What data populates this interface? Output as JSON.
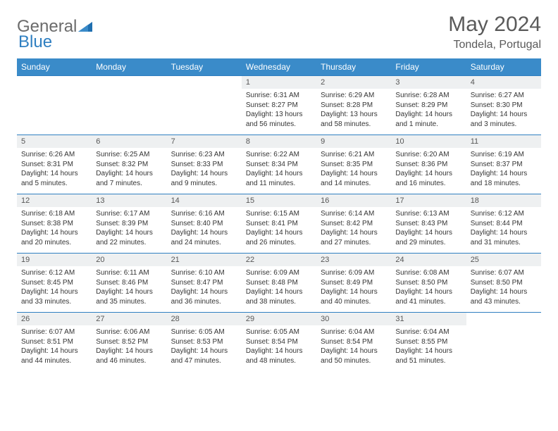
{
  "brand": {
    "general": "General",
    "blue": "Blue"
  },
  "title": "May 2024",
  "subtitle": "Tondela, Portugal",
  "colors": {
    "header_bg": "#3a8bc9",
    "header_text": "#ffffff",
    "day_bg": "#eef0f1",
    "row_border": "#2f7fc1",
    "text": "#353535",
    "logo_gray": "#6b6b6b",
    "logo_blue": "#2f7fc1"
  },
  "weekdays": [
    "Sunday",
    "Monday",
    "Tuesday",
    "Wednesday",
    "Thursday",
    "Friday",
    "Saturday"
  ],
  "weeks": [
    [
      null,
      null,
      null,
      {
        "n": "1",
        "sr": "6:31 AM",
        "ss": "8:27 PM",
        "dl": "13 hours and 56 minutes."
      },
      {
        "n": "2",
        "sr": "6:29 AM",
        "ss": "8:28 PM",
        "dl": "13 hours and 58 minutes."
      },
      {
        "n": "3",
        "sr": "6:28 AM",
        "ss": "8:29 PM",
        "dl": "14 hours and 1 minute."
      },
      {
        "n": "4",
        "sr": "6:27 AM",
        "ss": "8:30 PM",
        "dl": "14 hours and 3 minutes."
      }
    ],
    [
      {
        "n": "5",
        "sr": "6:26 AM",
        "ss": "8:31 PM",
        "dl": "14 hours and 5 minutes."
      },
      {
        "n": "6",
        "sr": "6:25 AM",
        "ss": "8:32 PM",
        "dl": "14 hours and 7 minutes."
      },
      {
        "n": "7",
        "sr": "6:23 AM",
        "ss": "8:33 PM",
        "dl": "14 hours and 9 minutes."
      },
      {
        "n": "8",
        "sr": "6:22 AM",
        "ss": "8:34 PM",
        "dl": "14 hours and 11 minutes."
      },
      {
        "n": "9",
        "sr": "6:21 AM",
        "ss": "8:35 PM",
        "dl": "14 hours and 14 minutes."
      },
      {
        "n": "10",
        "sr": "6:20 AM",
        "ss": "8:36 PM",
        "dl": "14 hours and 16 minutes."
      },
      {
        "n": "11",
        "sr": "6:19 AM",
        "ss": "8:37 PM",
        "dl": "14 hours and 18 minutes."
      }
    ],
    [
      {
        "n": "12",
        "sr": "6:18 AM",
        "ss": "8:38 PM",
        "dl": "14 hours and 20 minutes."
      },
      {
        "n": "13",
        "sr": "6:17 AM",
        "ss": "8:39 PM",
        "dl": "14 hours and 22 minutes."
      },
      {
        "n": "14",
        "sr": "6:16 AM",
        "ss": "8:40 PM",
        "dl": "14 hours and 24 minutes."
      },
      {
        "n": "15",
        "sr": "6:15 AM",
        "ss": "8:41 PM",
        "dl": "14 hours and 26 minutes."
      },
      {
        "n": "16",
        "sr": "6:14 AM",
        "ss": "8:42 PM",
        "dl": "14 hours and 27 minutes."
      },
      {
        "n": "17",
        "sr": "6:13 AM",
        "ss": "8:43 PM",
        "dl": "14 hours and 29 minutes."
      },
      {
        "n": "18",
        "sr": "6:12 AM",
        "ss": "8:44 PM",
        "dl": "14 hours and 31 minutes."
      }
    ],
    [
      {
        "n": "19",
        "sr": "6:12 AM",
        "ss": "8:45 PM",
        "dl": "14 hours and 33 minutes."
      },
      {
        "n": "20",
        "sr": "6:11 AM",
        "ss": "8:46 PM",
        "dl": "14 hours and 35 minutes."
      },
      {
        "n": "21",
        "sr": "6:10 AM",
        "ss": "8:47 PM",
        "dl": "14 hours and 36 minutes."
      },
      {
        "n": "22",
        "sr": "6:09 AM",
        "ss": "8:48 PM",
        "dl": "14 hours and 38 minutes."
      },
      {
        "n": "23",
        "sr": "6:09 AM",
        "ss": "8:49 PM",
        "dl": "14 hours and 40 minutes."
      },
      {
        "n": "24",
        "sr": "6:08 AM",
        "ss": "8:50 PM",
        "dl": "14 hours and 41 minutes."
      },
      {
        "n": "25",
        "sr": "6:07 AM",
        "ss": "8:50 PM",
        "dl": "14 hours and 43 minutes."
      }
    ],
    [
      {
        "n": "26",
        "sr": "6:07 AM",
        "ss": "8:51 PM",
        "dl": "14 hours and 44 minutes."
      },
      {
        "n": "27",
        "sr": "6:06 AM",
        "ss": "8:52 PM",
        "dl": "14 hours and 46 minutes."
      },
      {
        "n": "28",
        "sr": "6:05 AM",
        "ss": "8:53 PM",
        "dl": "14 hours and 47 minutes."
      },
      {
        "n": "29",
        "sr": "6:05 AM",
        "ss": "8:54 PM",
        "dl": "14 hours and 48 minutes."
      },
      {
        "n": "30",
        "sr": "6:04 AM",
        "ss": "8:54 PM",
        "dl": "14 hours and 50 minutes."
      },
      {
        "n": "31",
        "sr": "6:04 AM",
        "ss": "8:55 PM",
        "dl": "14 hours and 51 minutes."
      },
      null
    ]
  ],
  "labels": {
    "sunrise": "Sunrise: ",
    "sunset": "Sunset: ",
    "daylight": "Daylight: "
  }
}
